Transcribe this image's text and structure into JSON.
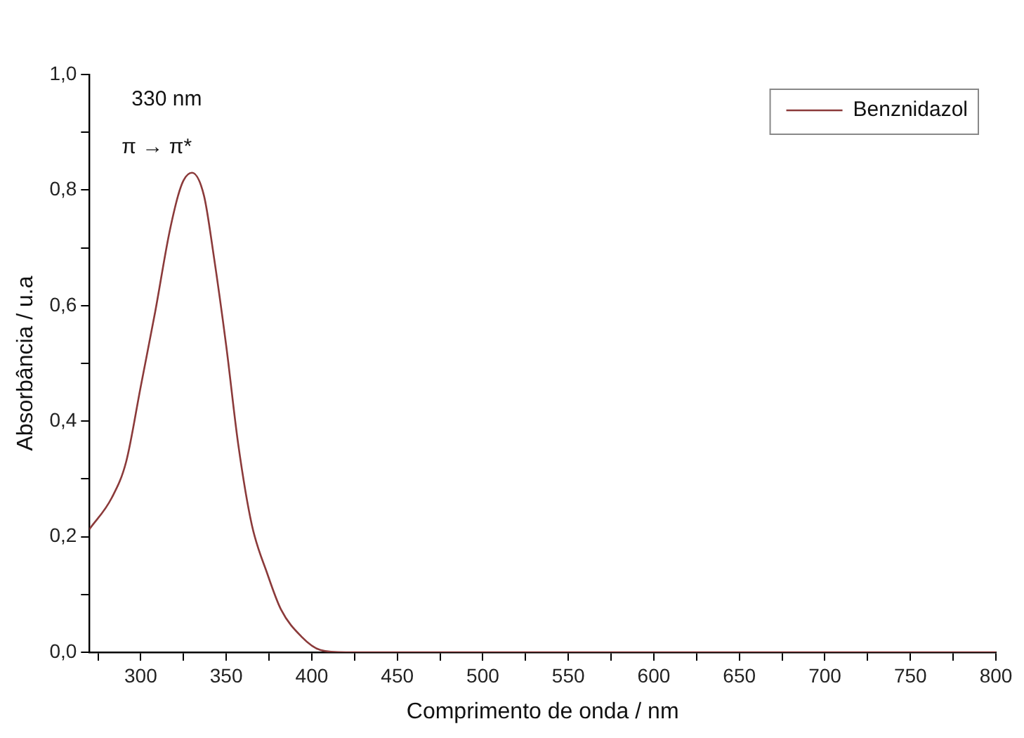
{
  "chart_data": {
    "type": "line",
    "xlabel": "Comprimento de onda / nm",
    "ylabel": "Absorbância / u.a",
    "annotations": [
      "330 nm",
      "π → π*"
    ],
    "series": [
      {
        "name": "Benznidazol",
        "color": "#8b3a3a",
        "x": [
          270,
          283,
          291.5,
          300,
          308.5,
          317,
          324,
          330,
          337,
          342.5,
          350,
          357,
          365,
          374,
          382,
          394,
          405,
          420,
          500,
          600,
          700,
          800
        ],
        "values": [
          0.213,
          0.267,
          0.33,
          0.46,
          0.59,
          0.73,
          0.81,
          0.83,
          0.79,
          0.69,
          0.53,
          0.36,
          0.22,
          0.136,
          0.074,
          0.027,
          0.004,
          0,
          0,
          0,
          0,
          0
        ]
      }
    ],
    "xlim": [
      270,
      800
    ],
    "xticks": [
      {
        "value": 275,
        "label": null
      },
      300,
      {
        "value": 325,
        "label": null
      },
      350,
      {
        "value": 375,
        "label": null
      },
      400,
      {
        "value": 425,
        "label": null
      },
      450,
      {
        "value": 475,
        "label": null
      },
      500,
      {
        "value": 525,
        "label": null
      },
      550,
      {
        "value": 575,
        "label": null
      },
      600,
      {
        "value": 625,
        "label": null
      },
      650,
      {
        "value": 675,
        "label": null
      },
      700,
      {
        "value": 725,
        "label": null
      },
      750,
      {
        "value": 775,
        "label": null
      },
      800
    ],
    "ylim": [
      0,
      1
    ],
    "yticks": [
      {
        "value": 0,
        "label": "0,0"
      },
      {
        "value": 0.1,
        "label": null
      },
      {
        "value": 0.2,
        "label": "0,2"
      },
      {
        "value": 0.3,
        "label": null
      },
      {
        "value": 0.4,
        "label": "0,4"
      },
      {
        "value": 0.5,
        "label": null
      },
      {
        "value": 0.6,
        "label": "0,6"
      },
      {
        "value": 0.7,
        "label": null
      },
      {
        "value": 0.8,
        "label": "0,8"
      },
      {
        "value": 0.9,
        "label": null
      },
      {
        "value": 1,
        "label": "1,0"
      }
    ],
    "grid": false,
    "legend": "top right",
    "marker": "none",
    "line_style": "solid"
  }
}
